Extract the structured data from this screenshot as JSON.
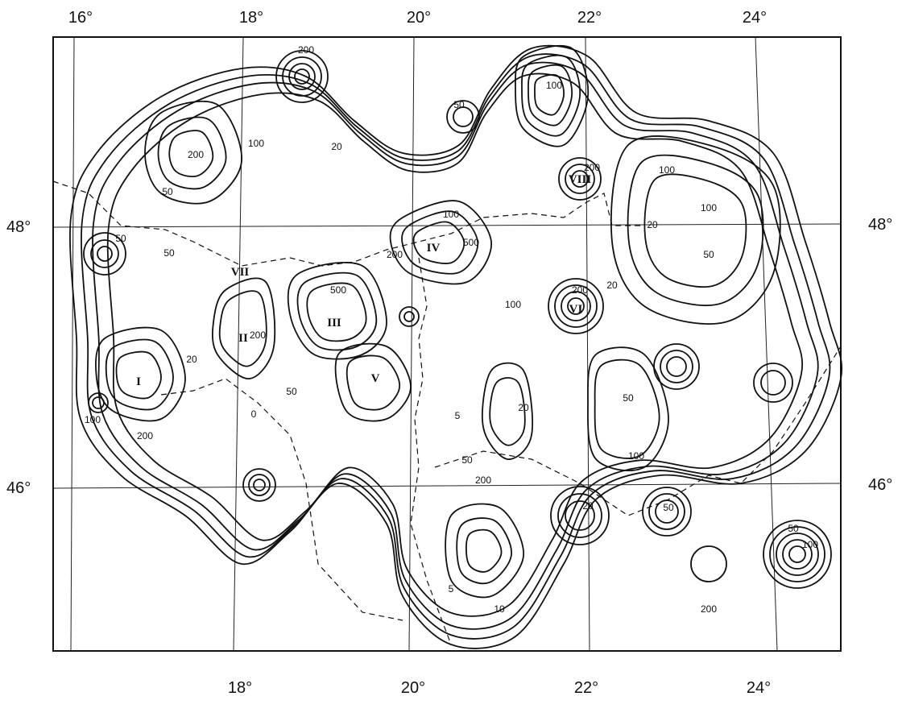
{
  "map": {
    "top_labels": [
      "16°",
      "18°",
      "20°",
      "22°",
      "24°"
    ],
    "bottom_labels": [
      "18°",
      "20°",
      "22°",
      "24°"
    ],
    "left_labels": [
      "48°",
      "46°"
    ],
    "right_labels": [
      "48°",
      "46°"
    ],
    "regions": [
      "I",
      "II",
      "III",
      "IV",
      "V",
      "VI",
      "VII",
      "VIII"
    ],
    "contour_labels": [
      "50",
      "200",
      "100",
      "20",
      "200",
      "50",
      "100",
      "200",
      "500",
      "100",
      "200",
      "50",
      "20",
      "500",
      "200",
      "100",
      "50",
      "100",
      "20",
      "50",
      "100",
      "200",
      "20",
      "100",
      "200",
      "50",
      "0",
      "5",
      "20",
      "50",
      "100",
      "200",
      "50",
      "50",
      "5",
      "10",
      "20",
      "50",
      "100",
      "200"
    ]
  }
}
